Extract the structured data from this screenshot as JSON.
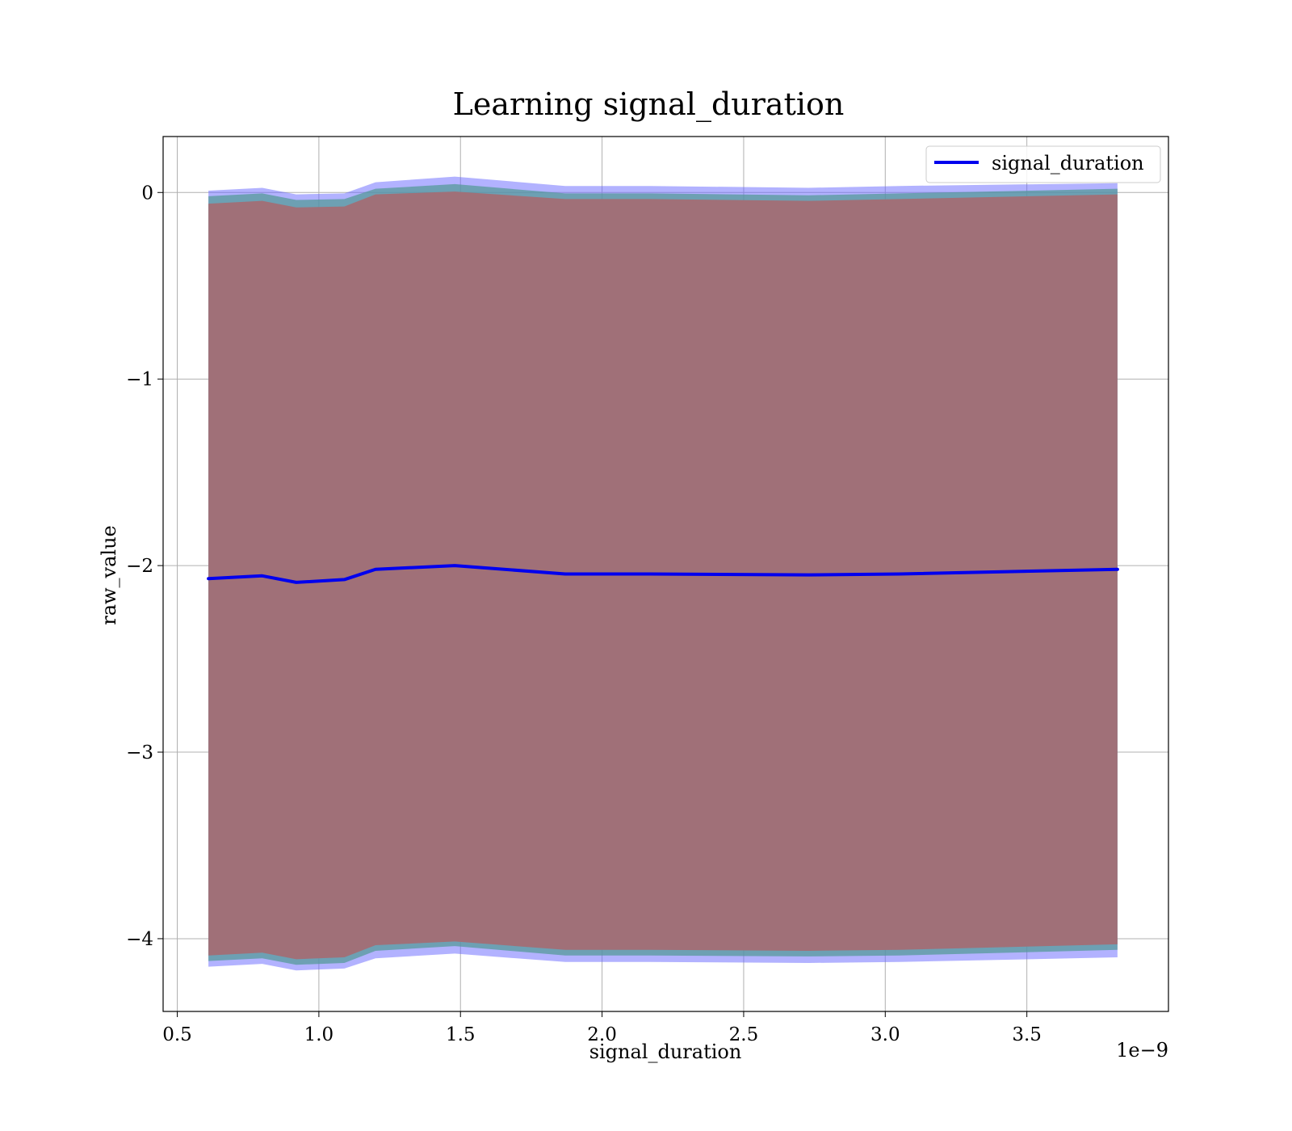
{
  "chart_data": {
    "type": "line",
    "title": "Learning signal_duration",
    "xlabel": "signal_duration",
    "ylabel": "raw_value",
    "x_offset_label": "1e−9",
    "xlim": [
      0.45,
      4.0
    ],
    "ylim": [
      -4.39,
      0.3
    ],
    "xticks": [
      0.5,
      1.0,
      1.5,
      2.0,
      2.5,
      3.0,
      3.5
    ],
    "xtick_labels": [
      "0.5",
      "1.0",
      "1.5",
      "2.0",
      "2.5",
      "3.0",
      "3.5"
    ],
    "yticks": [
      0,
      -1,
      -2,
      -3,
      -4
    ],
    "ytick_labels": [
      "0",
      "−1",
      "−2",
      "−3",
      "−4"
    ],
    "grid": true,
    "legend_position": "top-right",
    "series": [
      {
        "name": "signal_duration",
        "color": "#0000ee",
        "x": [
          0.61,
          0.8,
          0.92,
          1.09,
          1.2,
          1.48,
          1.87,
          2.17,
          2.73,
          3.05,
          3.82
        ],
        "y": [
          -2.07,
          -2.055,
          -2.09,
          -2.075,
          -2.02,
          -2.0,
          -2.045,
          -2.045,
          -2.05,
          -2.045,
          -2.02
        ]
      }
    ],
    "bands": [
      {
        "color": "#6666ff",
        "opacity": 0.5,
        "upper": [
          0.01,
          0.025,
          -0.01,
          -0.005,
          0.055,
          0.085,
          0.035,
          0.035,
          0.025,
          0.035,
          0.05
        ],
        "lower": [
          -4.15,
          -4.135,
          -4.17,
          -4.16,
          -4.105,
          -4.08,
          -4.125,
          -4.125,
          -4.13,
          -4.125,
          -4.1
        ]
      },
      {
        "color": "#559999",
        "opacity": 0.75,
        "upper": [
          -0.02,
          -0.005,
          -0.04,
          -0.035,
          0.02,
          0.045,
          -0.005,
          -0.005,
          -0.015,
          -0.005,
          0.02
        ],
        "lower": [
          -4.12,
          -4.105,
          -4.14,
          -4.13,
          -4.065,
          -4.04,
          -4.09,
          -4.09,
          -4.095,
          -4.09,
          -4.06
        ]
      },
      {
        "color": "#a07078",
        "opacity": 1.0,
        "upper": [
          -0.06,
          -0.045,
          -0.08,
          -0.075,
          -0.01,
          0.005,
          -0.035,
          -0.035,
          -0.045,
          -0.035,
          -0.01
        ],
        "lower": [
          -4.09,
          -4.075,
          -4.11,
          -4.1,
          -4.035,
          -4.015,
          -4.06,
          -4.06,
          -4.065,
          -4.06,
          -4.03
        ]
      }
    ]
  }
}
